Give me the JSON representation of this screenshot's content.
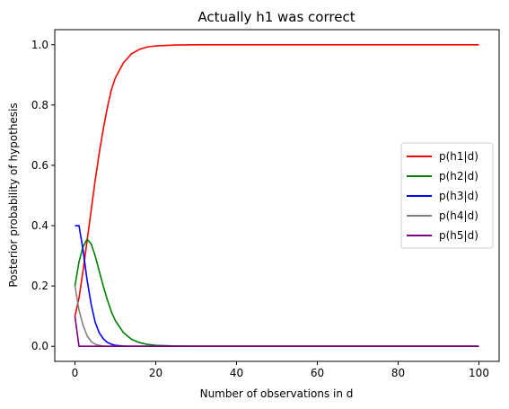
{
  "chart_data": {
    "type": "line",
    "title": "Actually h1 was correct",
    "xlabel": "Number of observations in d",
    "ylabel": "Posterior probability of hypothesis",
    "xlim": [
      -5,
      105
    ],
    "ylim": [
      -0.05,
      1.05
    ],
    "xticks": [
      0,
      20,
      40,
      60,
      80,
      100
    ],
    "yticks": [
      0.0,
      0.2,
      0.4,
      0.6,
      0.8,
      1.0
    ],
    "grid": false,
    "legend_position": "center-right",
    "x": [
      0,
      1,
      2,
      3,
      4,
      5,
      6,
      7,
      8,
      9,
      10,
      12,
      14,
      16,
      18,
      20,
      25,
      30,
      40,
      60,
      80,
      100
    ],
    "series": [
      {
        "name": "p(h1|d)",
        "color": "#ff0000",
        "values": [
          0.1,
          0.16,
          0.25,
          0.35,
          0.45,
          0.55,
          0.64,
          0.72,
          0.79,
          0.85,
          0.89,
          0.94,
          0.97,
          0.985,
          0.993,
          0.996,
          0.999,
          1.0,
          1.0,
          1.0,
          1.0,
          1.0
        ]
      },
      {
        "name": "p(h2|d)",
        "color": "#008000",
        "values": [
          0.2,
          0.28,
          0.33,
          0.355,
          0.34,
          0.3,
          0.25,
          0.2,
          0.155,
          0.115,
          0.085,
          0.045,
          0.023,
          0.012,
          0.006,
          0.003,
          0.001,
          0.0,
          0.0,
          0.0,
          0.0,
          0.0
        ]
      },
      {
        "name": "p(h3|d)",
        "color": "#0000ff",
        "values": [
          0.4,
          0.4,
          0.32,
          0.22,
          0.14,
          0.08,
          0.045,
          0.025,
          0.013,
          0.007,
          0.003,
          0.001,
          0.0,
          0.0,
          0.0,
          0.0,
          0.0,
          0.0,
          0.0,
          0.0,
          0.0,
          0.0
        ]
      },
      {
        "name": "p(h4|d)",
        "color": "#808080",
        "values": [
          0.2,
          0.12,
          0.07,
          0.035,
          0.016,
          0.007,
          0.003,
          0.001,
          0.0,
          0.0,
          0.0,
          0.0,
          0.0,
          0.0,
          0.0,
          0.0,
          0.0,
          0.0,
          0.0,
          0.0,
          0.0,
          0.0
        ]
      },
      {
        "name": "p(h5|d)",
        "color": "#800080",
        "values": [
          0.1,
          0.0,
          0.0,
          0.0,
          0.0,
          0.0,
          0.0,
          0.0,
          0.0,
          0.0,
          0.0,
          0.0,
          0.0,
          0.0,
          0.0,
          0.0,
          0.0,
          0.0,
          0.0,
          0.0,
          0.0,
          0.0
        ]
      }
    ]
  }
}
